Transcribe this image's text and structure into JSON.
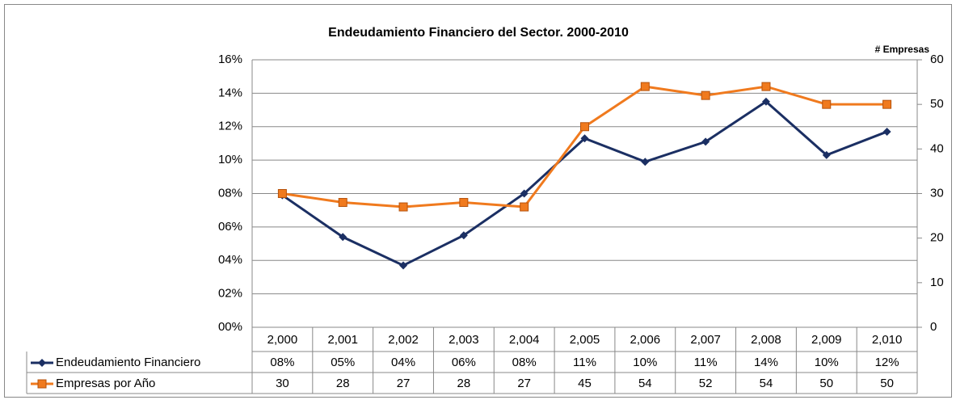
{
  "chart_data": {
    "type": "line",
    "title": "Endeudamiento Financiero del Sector.  2000-2010",
    "y2_label": "# Empresas",
    "categories": [
      "2,000",
      "2,001",
      "2,002",
      "2,003",
      "2,004",
      "2,005",
      "2,006",
      "2,007",
      "2,008",
      "2,009",
      "2,010"
    ],
    "series": [
      {
        "name": "Endeudamiento Financiero",
        "color": "#1b2f63",
        "marker": "diamond",
        "values": [
          7.9,
          5.4,
          3.7,
          5.5,
          8.0,
          11.3,
          9.9,
          11.1,
          13.5,
          10.3,
          11.7
        ],
        "value_labels": [
          "08%",
          "05%",
          "04%",
          "06%",
          "08%",
          "11%",
          "10%",
          "11%",
          "14%",
          "10%",
          "12%"
        ]
      },
      {
        "name": "Empresas por Año",
        "color": "#f07a1e",
        "marker": "square",
        "axis": "y2",
        "values": [
          30,
          28,
          27,
          28,
          27,
          45,
          54,
          52,
          54,
          50,
          50
        ]
      }
    ],
    "ylim": [
      0,
      16
    ],
    "yticks": [
      {
        "value": 0,
        "label": "00%"
      },
      {
        "value": 2,
        "label": "02%"
      },
      {
        "value": 4,
        "label": "04%"
      },
      {
        "value": 6,
        "label": "06%"
      },
      {
        "value": 8,
        "label": "08%"
      },
      {
        "value": 10,
        "label": "10%"
      },
      {
        "value": 12,
        "label": "12%"
      },
      {
        "value": 14,
        "label": "14%"
      },
      {
        "value": 16,
        "label": "16%"
      }
    ],
    "y2lim": [
      0,
      60
    ],
    "y2ticks": [
      0,
      10,
      20,
      30,
      40,
      50,
      60
    ],
    "grid": true,
    "data_table": true
  }
}
